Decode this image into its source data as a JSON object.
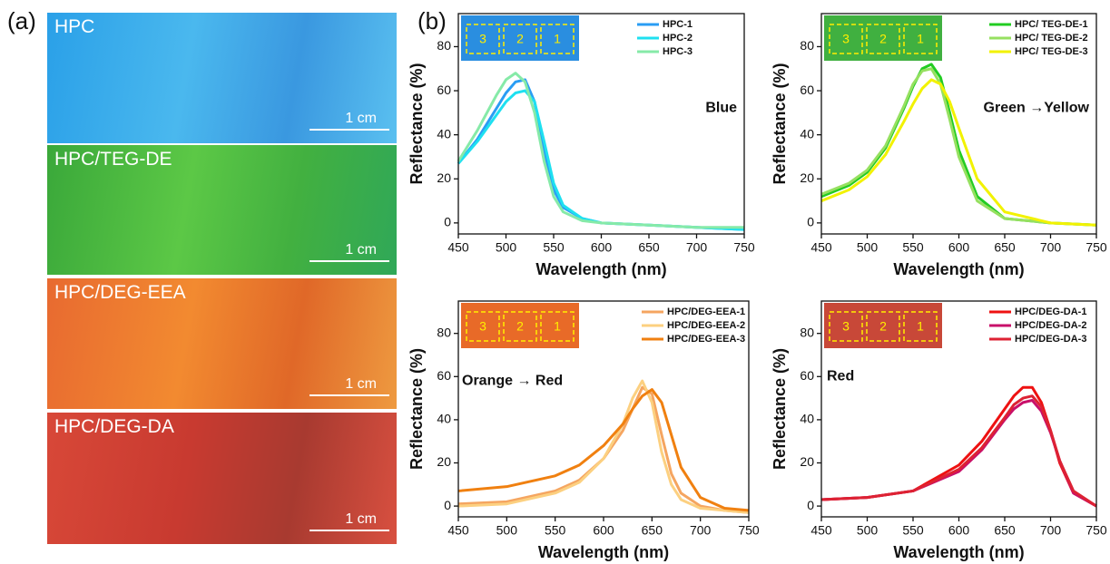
{
  "panel_labels": [
    "(a)",
    "(b)"
  ],
  "photos": [
    {
      "label": "HPC",
      "scale": "1 cm"
    },
    {
      "label": "HPC/TEG-DE",
      "scale": "1 cm"
    },
    {
      "label": "HPC/DEG-EEA",
      "scale": "1 cm"
    },
    {
      "label": "HPC/DEG-DA",
      "scale": "1 cm"
    }
  ],
  "chart_data": [
    {
      "type": "line",
      "annotation": "Blue",
      "inset_labels": [
        "3",
        "2",
        "1"
      ],
      "x_label": "Wavelength (nm)",
      "y_label": "Reflectance (%)",
      "x": [
        450,
        470,
        490,
        500,
        510,
        520,
        530,
        540,
        550,
        560,
        580,
        600,
        650,
        700,
        750
      ],
      "series": [
        {
          "name": "HPC-1",
          "color": "#2a9df4",
          "values": [
            27,
            38,
            52,
            59,
            64,
            65,
            55,
            33,
            15,
            7,
            2,
            0,
            -1,
            -2,
            -3
          ]
        },
        {
          "name": "HPC-2",
          "color": "#1ee0f0",
          "values": [
            27,
            37,
            49,
            55,
            59,
            60,
            55,
            37,
            18,
            8,
            2,
            0,
            -1,
            -2,
            -3
          ]
        },
        {
          "name": "HPC-3",
          "color": "#86eaa8",
          "values": [
            28,
            42,
            58,
            65,
            68,
            64,
            50,
            28,
            12,
            5,
            1,
            0,
            -1,
            -2,
            -2
          ]
        }
      ],
      "xlim": [
        450,
        750
      ],
      "xticks": [
        450,
        500,
        550,
        600,
        650,
        700,
        750
      ],
      "ylim": [
        -5,
        95
      ],
      "yticks": [
        0,
        20,
        40,
        60,
        80
      ],
      "legend": "upper right"
    },
    {
      "type": "line",
      "annotation": "Green →Yellow",
      "inset_labels": [
        "3",
        "2",
        "1"
      ],
      "x_label": "Wavelength (nm)",
      "y_label": "Reflectance (%)",
      "x": [
        450,
        480,
        500,
        520,
        540,
        550,
        560,
        570,
        580,
        590,
        600,
        620,
        650,
        700,
        750
      ],
      "series": [
        {
          "name": "HPC/ TEG-DE-1",
          "color": "#22cc22",
          "values": [
            12,
            17,
            23,
            34,
            52,
            62,
            70,
            72,
            66,
            50,
            33,
            12,
            2,
            0,
            -1
          ]
        },
        {
          "name": "HPC/ TEG-DE-2",
          "color": "#96e060",
          "values": [
            13,
            18,
            24,
            35,
            53,
            63,
            69,
            70,
            63,
            47,
            30,
            10,
            2,
            0,
            -1
          ]
        },
        {
          "name": "HPC/ TEG-DE-3",
          "color": "#f2f200",
          "values": [
            10,
            15,
            21,
            31,
            46,
            54,
            61,
            65,
            63,
            55,
            43,
            20,
            5,
            0,
            -1
          ]
        }
      ],
      "xlim": [
        450,
        750
      ],
      "xticks": [
        450,
        500,
        550,
        600,
        650,
        700,
        750
      ],
      "ylim": [
        -5,
        95
      ],
      "yticks": [
        0,
        20,
        40,
        60,
        80
      ],
      "legend": "upper right"
    },
    {
      "type": "line",
      "annotation": "Orange → Red",
      "inset_labels": [
        "3",
        "2",
        "1"
      ],
      "x_label": "Wavelength (nm)",
      "y_label": "Reflectance (%)",
      "x": [
        450,
        500,
        550,
        575,
        600,
        620,
        630,
        640,
        650,
        660,
        670,
        680,
        700,
        725,
        750
      ],
      "series": [
        {
          "name": "HPC/DEG-EEA-1",
          "color": "#f5a560",
          "values": [
            1,
            2,
            7,
            12,
            22,
            35,
            45,
            55,
            52,
            33,
            15,
            6,
            0,
            -2,
            -3
          ]
        },
        {
          "name": "HPC/DEG-EEA-2",
          "color": "#fcd080",
          "values": [
            0,
            1,
            6,
            11,
            22,
            38,
            50,
            58,
            48,
            25,
            10,
            3,
            -1,
            -2,
            -3
          ]
        },
        {
          "name": "HPC/DEG-EEA-3",
          "color": "#f08010",
          "values": [
            7,
            9,
            14,
            19,
            28,
            38,
            45,
            51,
            54,
            48,
            33,
            18,
            4,
            -1,
            -2
          ]
        }
      ],
      "xlim": [
        450,
        750
      ],
      "xticks": [
        450,
        500,
        550,
        600,
        650,
        700,
        750
      ],
      "ylim": [
        -5,
        95
      ],
      "yticks": [
        0,
        20,
        40,
        60,
        80
      ],
      "legend": "upper right"
    },
    {
      "type": "line",
      "annotation": "Red",
      "inset_labels": [
        "3",
        "2",
        "1"
      ],
      "x_label": "Wavelength (nm)",
      "y_label": "Reflectance (%)",
      "x": [
        450,
        500,
        550,
        600,
        625,
        650,
        660,
        670,
        680,
        690,
        700,
        710,
        725,
        750
      ],
      "series": [
        {
          "name": "HPC/DEG-DA-1",
          "color": "#ee1111",
          "values": [
            3,
            4,
            7,
            19,
            30,
            45,
            51,
            55,
            55,
            48,
            35,
            20,
            6,
            0
          ]
        },
        {
          "name": "HPC/DEG-DA-2",
          "color": "#c8106a",
          "values": [
            3,
            4,
            7,
            16,
            26,
            40,
            45,
            48,
            49,
            44,
            34,
            21,
            6,
            0
          ]
        },
        {
          "name": "HPC/DEG-DA-3",
          "color": "#dd2233",
          "values": [
            3,
            4,
            7,
            17,
            27,
            41,
            47,
            50,
            51,
            46,
            35,
            21,
            7,
            0
          ]
        }
      ],
      "xlim": [
        450,
        750
      ],
      "xticks": [
        450,
        500,
        550,
        600,
        650,
        700,
        750
      ],
      "ylim": [
        -5,
        95
      ],
      "yticks": [
        0,
        20,
        40,
        60,
        80
      ],
      "legend": "upper right"
    }
  ]
}
